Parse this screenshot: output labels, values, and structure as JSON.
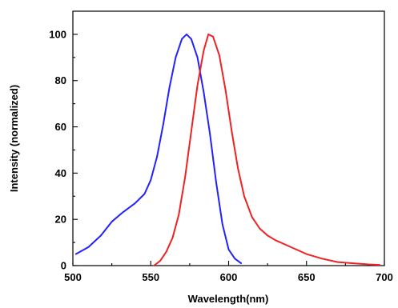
{
  "chart_data": {
    "type": "line",
    "title": "",
    "xlabel": "Wavelength(nm)",
    "ylabel": "Intensity (normalized)",
    "xlim": [
      500,
      700
    ],
    "ylim": [
      0,
      110
    ],
    "x_ticks": [
      500,
      550,
      600,
      650,
      700
    ],
    "x_tick_labels": [
      "500",
      "550",
      "600",
      "650",
      "700"
    ],
    "y_ticks": [
      0,
      20,
      40,
      60,
      80,
      100
    ],
    "y_tick_labels": [
      "0",
      "20",
      "40",
      "60",
      "80",
      "100"
    ],
    "grid": false,
    "series": [
      {
        "color": "#2222ff",
        "x": [
          502,
          510,
          518,
          525,
          532,
          540,
          546,
          550,
          554,
          558,
          562,
          566,
          570,
          573,
          576,
          580,
          584,
          588,
          592,
          596,
          600,
          604,
          608
        ],
        "y": [
          5,
          8,
          13,
          19,
          23,
          27,
          31,
          37,
          47,
          61,
          77,
          90,
          98,
          100,
          98,
          90,
          75,
          57,
          36,
          18,
          7,
          3,
          1
        ]
      },
      {
        "color": "#ee2222",
        "x": [
          552,
          556,
          560,
          564,
          568,
          572,
          576,
          580,
          584,
          587,
          590,
          594,
          598,
          602,
          606,
          610,
          615,
          620,
          625,
          630,
          640,
          650,
          660,
          670,
          680,
          690,
          697
        ],
        "y": [
          0,
          2,
          6,
          12,
          22,
          38,
          58,
          78,
          93,
          100,
          99,
          91,
          76,
          58,
          42,
          30,
          21,
          16,
          13,
          11,
          8,
          5,
          3,
          1.5,
          1,
          0.5,
          0.3
        ]
      }
    ]
  }
}
